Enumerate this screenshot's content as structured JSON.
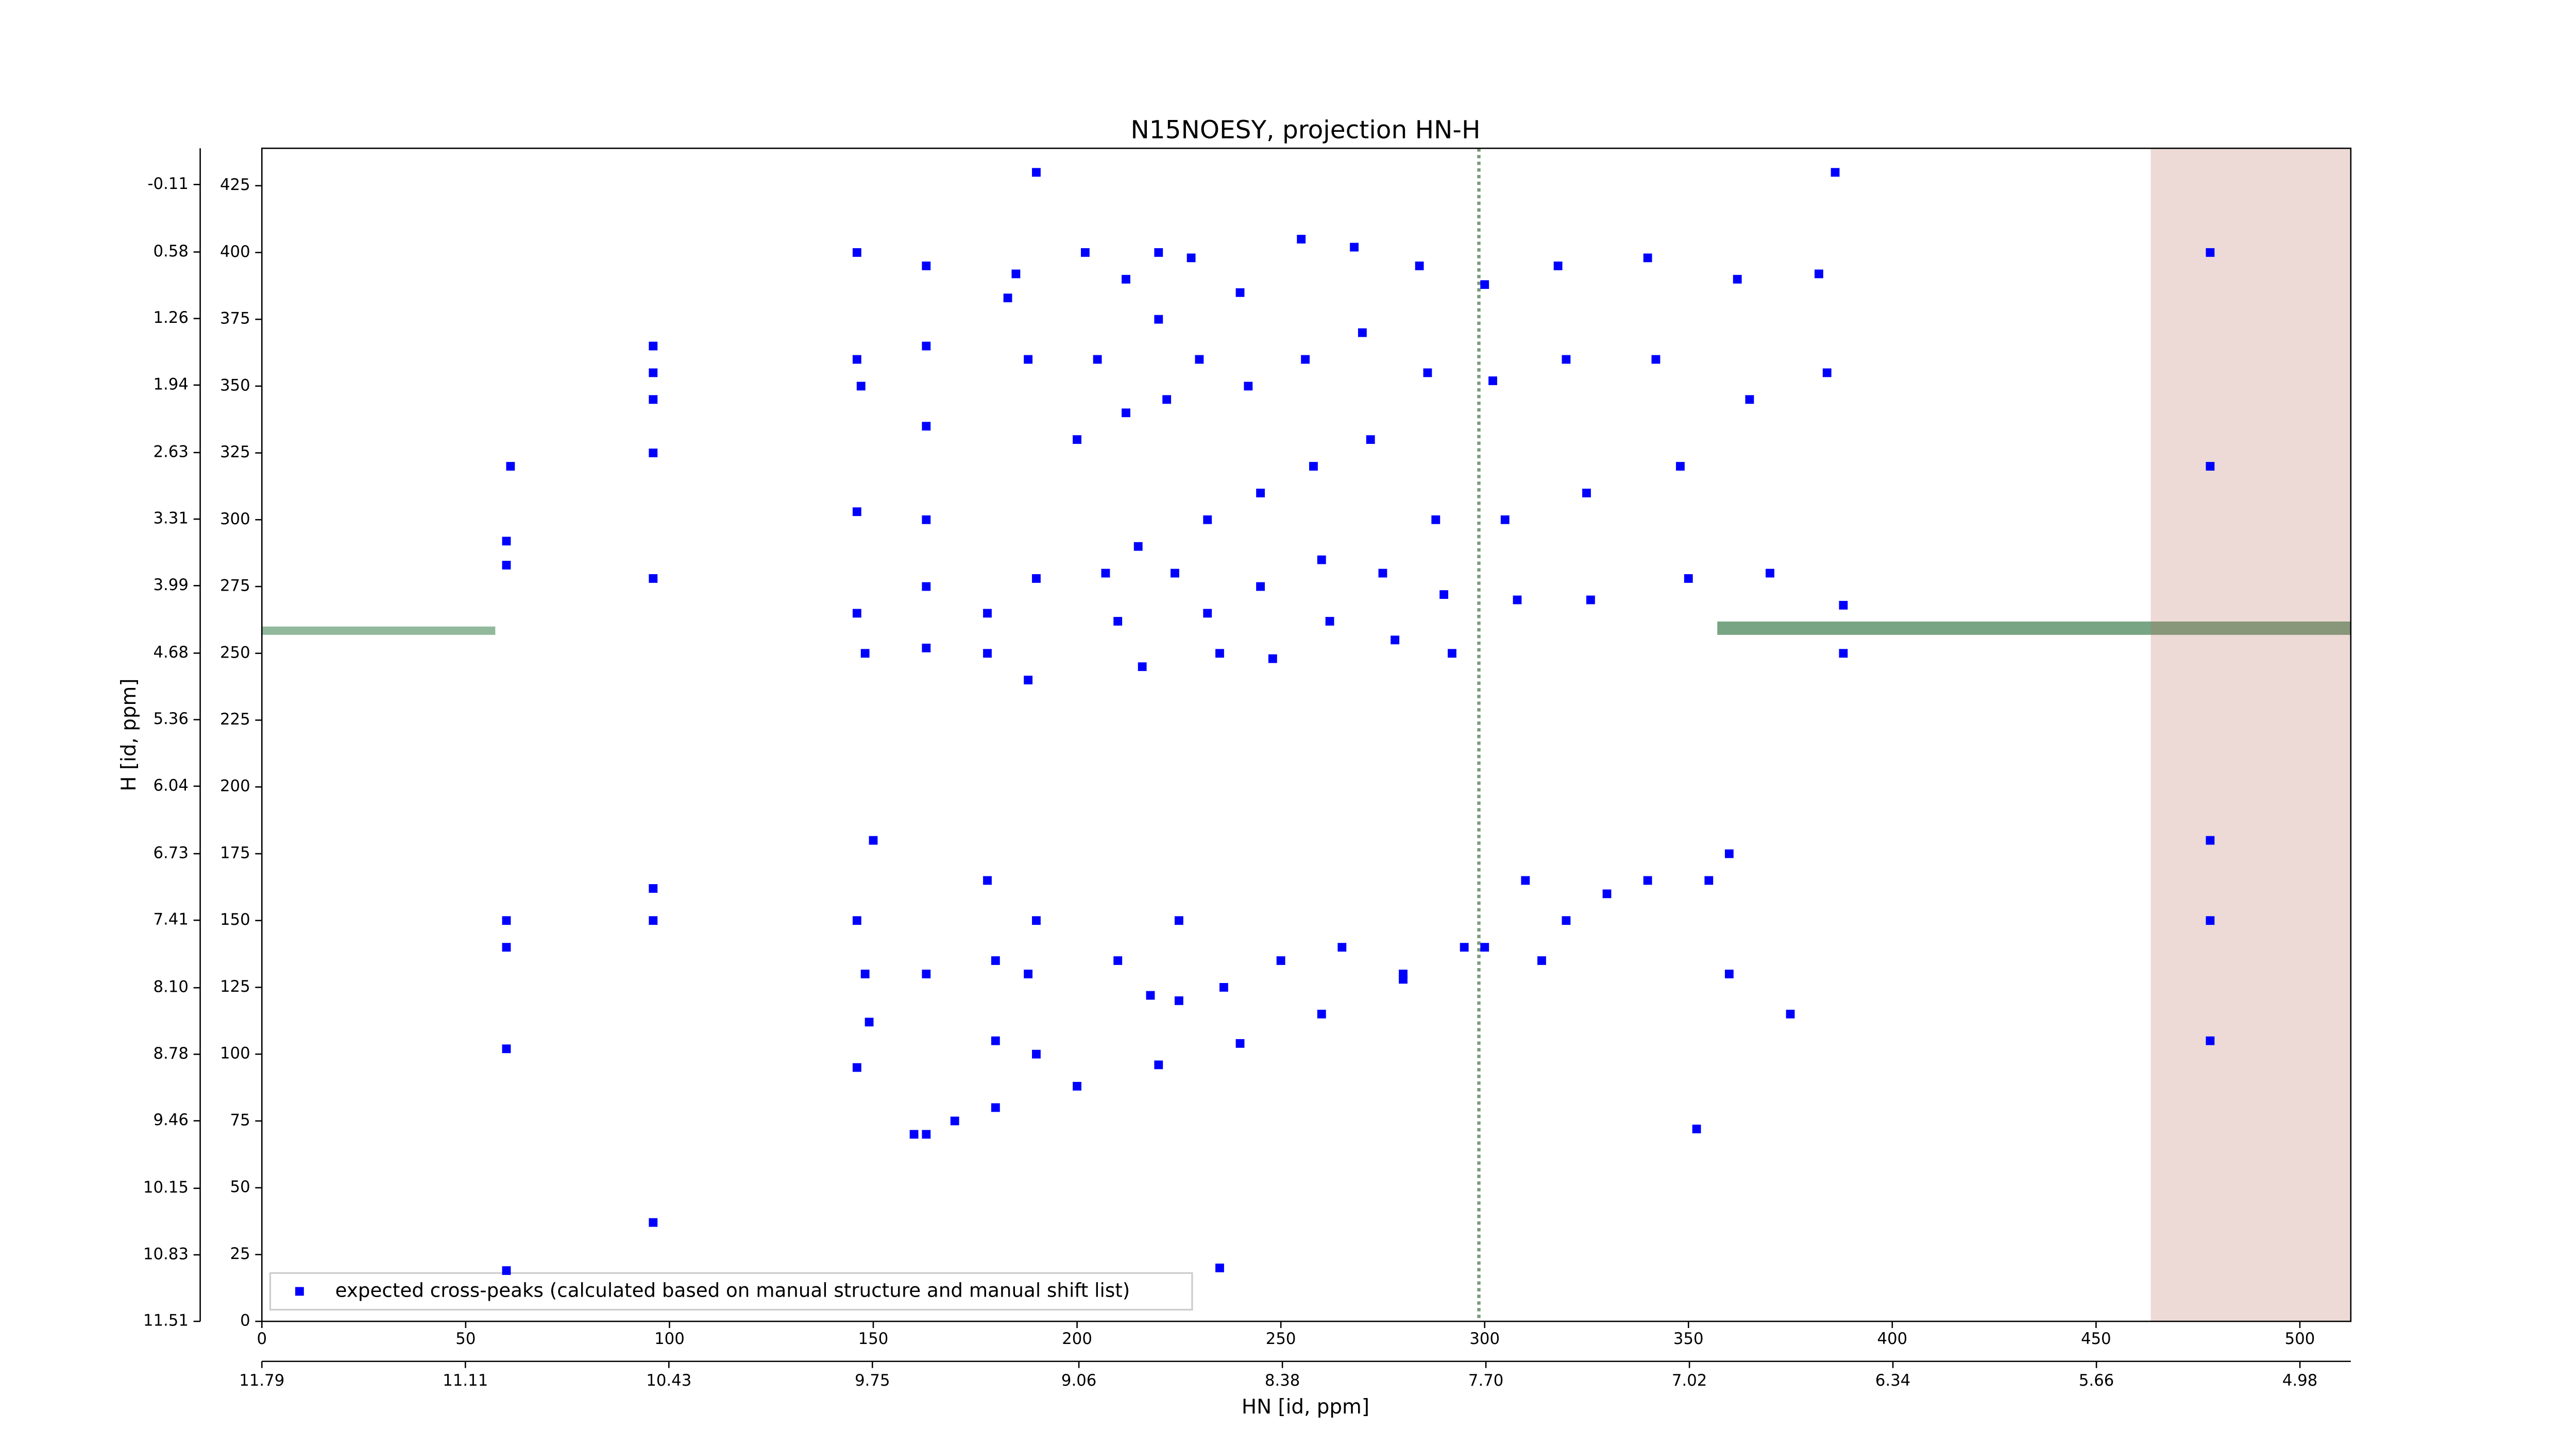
{
  "chart_data": {
    "type": "scatter",
    "title": "N15NOESY, projection HN-H",
    "x_label": "HN [id, ppm]",
    "y_label": "H [id, ppm]",
    "xlim": [
      0,
      512.5
    ],
    "xticks": [
      0,
      50,
      100,
      150,
      200,
      250,
      300,
      350,
      400,
      450,
      500
    ],
    "x2lim": [
      11.79,
      4.81
    ],
    "x2ticks": [
      11.79,
      11.11,
      10.43,
      9.75,
      9.06,
      8.38,
      {
        "value": 7.7,
        "label": "7.70"
      },
      7.02,
      6.34,
      5.66,
      4.98
    ],
    "ylim": [
      0,
      439
    ],
    "yticks": [
      0,
      25,
      50,
      75,
      100,
      125,
      150,
      175,
      200,
      225,
      250,
      275,
      300,
      325,
      350,
      375,
      400,
      425
    ],
    "y2lim": [
      11.51,
      -0.48
    ],
    "y2ticks": [
      11.51,
      10.83,
      10.15,
      9.46,
      8.78,
      {
        "value": 8.1,
        "label": "8.10"
      },
      7.41,
      6.73,
      6.04,
      5.36,
      4.68,
      3.99,
      3.31,
      2.63,
      1.94,
      1.26,
      0.58,
      -0.11
    ],
    "legend": "lower left",
    "series": [
      {
        "name": "expected cross-peaks (calculated based on manual structure and manual shift list)",
        "color": "#0000ff",
        "x": [
          61,
          60,
          60,
          60,
          60,
          60,
          60,
          96,
          96,
          96,
          96,
          96,
          96,
          96,
          96,
          146,
          146,
          147,
          146,
          146,
          148,
          150,
          146,
          148,
          149,
          146,
          163,
          163,
          163,
          163,
          163,
          163,
          163,
          163,
          178,
          178,
          178,
          180,
          180,
          183,
          185,
          188,
          190,
          188,
          190,
          188,
          190,
          200,
          202,
          205,
          207,
          210,
          210,
          212,
          212,
          215,
          216,
          218,
          220,
          220,
          222,
          224,
          225,
          225,
          228,
          230,
          232,
          232,
          235,
          236,
          240,
          242,
          245,
          245,
          248,
          250,
          255,
          256,
          258,
          260,
          262,
          265,
          268,
          270,
          272,
          275,
          278,
          280,
          284,
          286,
          288,
          290,
          292,
          295,
          300,
          302,
          305,
          308,
          310,
          314,
          318,
          320,
          325,
          326,
          330,
          340,
          342,
          348,
          350,
          355,
          360,
          362,
          365,
          370,
          375,
          382,
          384,
          388,
          388,
          386,
          190,
          352,
          478,
          478,
          478,
          478,
          478,
          160,
          170,
          180,
          200,
          220,
          240,
          260,
          280,
          300,
          320,
          340,
          360,
          235
        ],
        "y": [
          320,
          292,
          283,
          102,
          150,
          140,
          19,
          365,
          355,
          345,
          325,
          278,
          162,
          150,
          37,
          400,
          360,
          350,
          303,
          265,
          250,
          180,
          150,
          130,
          112,
          95,
          395,
          365,
          335,
          300,
          275,
          252,
          130,
          70,
          265,
          250,
          165,
          135,
          105,
          383,
          392,
          360,
          278,
          240,
          150,
          130,
          100,
          330,
          400,
          360,
          280,
          262,
          135,
          390,
          340,
          290,
          245,
          122,
          400,
          375,
          345,
          280,
          150,
          120,
          398,
          360,
          300,
          265,
          250,
          125,
          385,
          350,
          310,
          275,
          248,
          135,
          405,
          360,
          320,
          285,
          262,
          140,
          402,
          370,
          330,
          280,
          255,
          130,
          395,
          355,
          300,
          272,
          250,
          140,
          388,
          352,
          300,
          270,
          165,
          135,
          395,
          360,
          310,
          270,
          160,
          398,
          360,
          320,
          278,
          165,
          130,
          390,
          345,
          280,
          115,
          392,
          355,
          268,
          250,
          430,
          430,
          72,
          400,
          180,
          150,
          105,
          320,
          70,
          75,
          80,
          88,
          96,
          104,
          115,
          128,
          140,
          150,
          165,
          175,
          20
        ]
      }
    ]
  }
}
